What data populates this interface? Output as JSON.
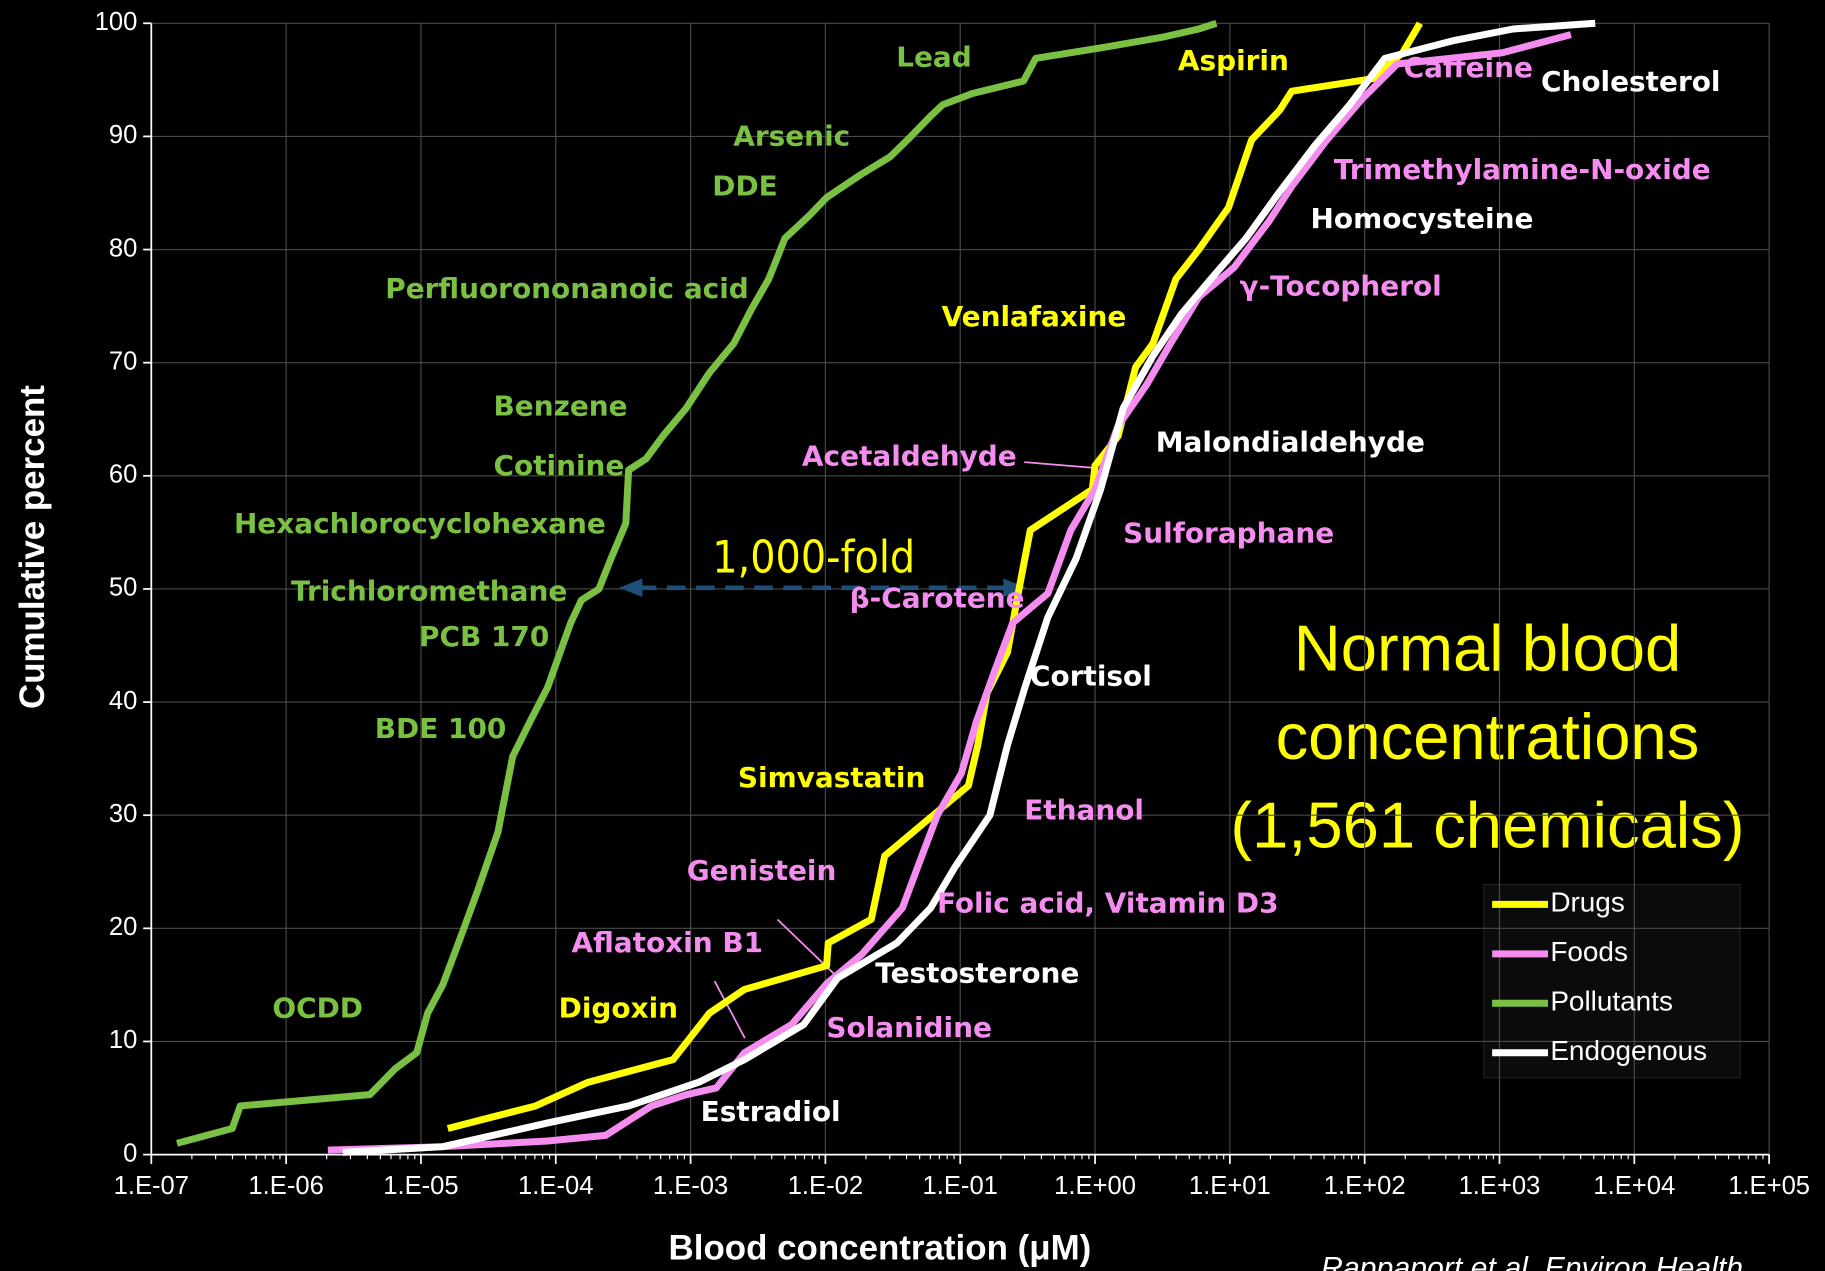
{
  "chart_data": {
    "type": "line",
    "x_label": "Blood concentration (μM)",
    "y_label": "Cumulative percent",
    "xscale": "log",
    "xlim": [
      1e-07,
      100000.0
    ],
    "ylim": [
      0,
      100
    ],
    "xticks": [
      {
        "value": 1e-07,
        "label": "1.E-07"
      },
      {
        "value": 1e-06,
        "label": "1.E-06"
      },
      {
        "value": 1e-05,
        "label": "1.E-05"
      },
      {
        "value": 0.0001,
        "label": "1.E-04"
      },
      {
        "value": 0.001,
        "label": "1.E-03"
      },
      {
        "value": 0.01,
        "label": "1.E-02"
      },
      {
        "value": 0.1,
        "label": "1.E-01"
      },
      {
        "value": 1,
        "label": "1.E+00"
      },
      {
        "value": 10,
        "label": "1.E+01"
      },
      {
        "value": 100,
        "label": "1.E+02"
      },
      {
        "value": 1000,
        "label": "1.E+03"
      },
      {
        "value": 10000,
        "label": "1.E+04"
      },
      {
        "value": 100000,
        "label": "1.E+05"
      }
    ],
    "yticks": [
      0,
      10,
      20,
      30,
      40,
      50,
      60,
      70,
      80,
      90,
      100
    ],
    "grid": true,
    "legend": "lower right",
    "series": [
      {
        "name": "Drugs",
        "color": "#ffff00",
        "x": [
          1.58e-05,
          7.08e-05,
          0.000174,
          0.000741,
          0.00138,
          0.00251,
          0.0102,
          0.0105,
          0.0219,
          0.0275,
          0.0501,
          0.115,
          0.135,
          0.158,
          0.224,
          0.269,
          0.331,
          0.955,
          1,
          1.48,
          2.0,
          2.69,
          3.98,
          5.89,
          9.77,
          14.5,
          23.4,
          28.8,
          115,
          191,
          257
        ],
        "values": [
          2.3,
          4.3,
          6.4,
          8.4,
          12.5,
          14.6,
          16.7,
          18.7,
          20.8,
          26.4,
          29,
          32.6,
          36.2,
          40.8,
          44.4,
          49.6,
          55.2,
          58.8,
          60.9,
          63.5,
          69.6,
          71.7,
          77.4,
          80,
          83.7,
          89.7,
          92.3,
          94,
          95.1,
          97.4,
          100
        ]
      },
      {
        "name": "Foods",
        "color": "#f58cf0",
        "x": [
          2.04e-06,
          1.45e-05,
          8.7e-05,
          0.000234,
          0.000513,
          0.00093,
          0.00155,
          0.00251,
          0.00562,
          0.0102,
          0.0186,
          0.0372,
          0.0501,
          0.0676,
          0.102,
          0.132,
          0.182,
          0.245,
          0.447,
          0.661,
          1,
          1.48,
          2.4,
          3.63,
          5.89,
          10.7,
          19.5,
          28.8,
          52.5,
          95.5,
          174,
          1050,
          3390
        ],
        "values": [
          0.4,
          0.7,
          1.2,
          1.7,
          4.3,
          5.3,
          5.9,
          9,
          11.5,
          15.1,
          17.7,
          21.8,
          25.9,
          30,
          33.7,
          38.3,
          42.9,
          47,
          49.6,
          55.2,
          58.8,
          64.4,
          68,
          71.7,
          75.8,
          78.4,
          82.5,
          85.6,
          89.7,
          93.3,
          96.4,
          97.4,
          99
        ]
      },
      {
        "name": "Pollutants",
        "color": "#7ac143",
        "x": [
          1.55e-07,
          3.98e-07,
          4.57e-07,
          4.17e-06,
          6.46e-06,
          9.3e-06,
          1.12e-05,
          1.45e-05,
          2.04e-05,
          2.63e-05,
          3.72e-05,
          4.79e-05,
          6.46e-05,
          8.7e-05,
          0.000129,
          0.000155,
          0.000209,
          0.000257,
          0.000331,
          0.000347,
          0.000468,
          0.000631,
          0.00093,
          0.00138,
          0.00209,
          0.00282,
          0.0038,
          0.00501,
          0.00759,
          0.0102,
          0.0182,
          0.0302,
          0.0407,
          0.0603,
          0.0741,
          0.123,
          0.295,
          0.363,
          1.2,
          3.24,
          5.89,
          7.94
        ],
        "values": [
          1.0,
          2.3,
          4.3,
          5.3,
          7.6,
          9,
          12.5,
          15,
          19.7,
          23.3,
          28.5,
          35.2,
          38.3,
          41.3,
          47,
          49,
          50,
          52.7,
          55.8,
          60.5,
          61.5,
          63.6,
          66,
          69.1,
          71.7,
          74.7,
          77.4,
          81,
          83,
          84.6,
          86.6,
          88.2,
          89.7,
          91.8,
          92.8,
          93.8,
          94.9,
          96.9,
          97.9,
          98.8,
          99.5,
          100
        ]
      },
      {
        "name": "Endogenous",
        "color": "#ffffff",
        "x": [
          2.63e-06,
          1.45e-05,
          8.7e-05,
          0.000347,
          0.00115,
          0.00251,
          0.00692,
          0.0123,
          0.0339,
          0.0603,
          0.0912,
          0.166,
          0.224,
          0.302,
          0.447,
          0.724,
          1.1,
          1.62,
          2.69,
          4.37,
          7.24,
          13.2,
          23.4,
          42.7,
          77.6,
          141,
          468,
          1260,
          5130
        ],
        "values": [
          0.2,
          0.7,
          2.8,
          4.3,
          6.4,
          8.4,
          11.5,
          15.6,
          18.7,
          21.8,
          25.4,
          30,
          36.2,
          41.3,
          47.5,
          52.7,
          58.8,
          66,
          70.6,
          74.3,
          77.4,
          81,
          85.1,
          89.2,
          92.8,
          96.9,
          98.5,
          99.5,
          100
        ]
      }
    ],
    "annotations": [
      {
        "text": "Lead",
        "color": "#7ac143"
      },
      {
        "text": "Arsenic",
        "color": "#7ac143"
      },
      {
        "text": "DDE",
        "color": "#7ac143"
      },
      {
        "text": "Perfluorononanoic acid",
        "color": "#7ac143"
      },
      {
        "text": "Benzene",
        "color": "#7ac143"
      },
      {
        "text": "Cotinine",
        "color": "#7ac143"
      },
      {
        "text": "Hexachlorocyclohexane",
        "color": "#7ac143"
      },
      {
        "text": "Trichloromethane",
        "color": "#7ac143"
      },
      {
        "text": "PCB 170",
        "color": "#7ac143"
      },
      {
        "text": "BDE 100",
        "color": "#7ac143"
      },
      {
        "text": "OCDD",
        "color": "#7ac143"
      },
      {
        "text": "Aspirin",
        "color": "#ffff00"
      },
      {
        "text": "Venlafaxine",
        "color": "#ffff00"
      },
      {
        "text": "Simvastatin",
        "color": "#ffff00"
      },
      {
        "text": "Digoxin",
        "color": "#ffff00"
      },
      {
        "text": "Caffeine",
        "color": "#f58cf0"
      },
      {
        "text": "Trimethylamine-N-oxide",
        "color": "#f58cf0"
      },
      {
        "text": "γ-Tocopherol",
        "color": "#f58cf0"
      },
      {
        "text": "Acetaldehyde",
        "color": "#f58cf0"
      },
      {
        "text": "Sulforaphane",
        "color": "#f58cf0"
      },
      {
        "text": "β-Carotene",
        "color": "#f58cf0"
      },
      {
        "text": "Ethanol",
        "color": "#f58cf0"
      },
      {
        "text": "Genistein",
        "color": "#f58cf0"
      },
      {
        "text": "Folic acid, Vitamin D3",
        "color": "#f58cf0"
      },
      {
        "text": "Aflatoxin B1",
        "color": "#f58cf0"
      },
      {
        "text": "Solanidine",
        "color": "#f58cf0"
      },
      {
        "text": "Cholesterol",
        "color": "#ffffff"
      },
      {
        "text": "Homocysteine",
        "color": "#ffffff"
      },
      {
        "text": "Malondialdehyde",
        "color": "#ffffff"
      },
      {
        "text": "Cortisol",
        "color": "#ffffff"
      },
      {
        "text": "Testosterone",
        "color": "#ffffff"
      },
      {
        "text": "Estradiol",
        "color": "#ffffff"
      }
    ],
    "fold_label": "1,000-fold",
    "headline": [
      "Normal blood",
      "concentrations",
      "(1,561 chemicals)"
    ],
    "source": "Rappaport et al. Environ Health"
  }
}
